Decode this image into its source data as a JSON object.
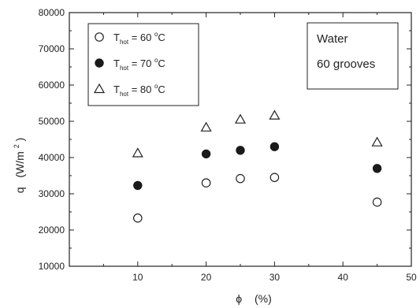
{
  "chart_data": {
    "type": "scatter",
    "xlabel": "ϕ",
    "xlabel_unit": "(%)",
    "ylabel": "q",
    "ylabel_unit_open": "(W/m",
    "ylabel_unit_sup": "2",
    "ylabel_unit_close": ")",
    "xlim": [
      0,
      50
    ],
    "ylim": [
      10000,
      80000
    ],
    "x_ticks": [
      10,
      20,
      30,
      40,
      50
    ],
    "y_ticks": [
      10000,
      20000,
      30000,
      40000,
      50000,
      60000,
      70000,
      80000
    ],
    "grid": false,
    "legend_position": "top-left",
    "series": [
      {
        "name": "T_hot = 60 °C",
        "label_main": "T",
        "label_sub": "hot",
        "label_rest": " = 60 ",
        "label_sup": "o",
        "label_unit": "C",
        "marker": "open-circle",
        "x": [
          10,
          20,
          25,
          30,
          45
        ],
        "y": [
          23300,
          33000,
          34200,
          34500,
          27700
        ]
      },
      {
        "name": "T_hot = 70 °C",
        "label_main": "T",
        "label_sub": "hot",
        "label_rest": " = 70 ",
        "label_sup": "o",
        "label_unit": "C",
        "marker": "filled-circle",
        "x": [
          10,
          20,
          25,
          30,
          45
        ],
        "y": [
          32300,
          41000,
          42000,
          43000,
          37000
        ]
      },
      {
        "name": "T_hot = 80 °C",
        "label_main": "T",
        "label_sub": "hot",
        "label_rest": " = 80 ",
        "label_sup": "o",
        "label_unit": "C",
        "marker": "open-triangle",
        "x": [
          10,
          20,
          25,
          30,
          45
        ],
        "y": [
          41200,
          48300,
          50500,
          51600,
          44200
        ]
      }
    ],
    "annotation": {
      "line1": "Water",
      "line2": "60 grooves"
    }
  }
}
